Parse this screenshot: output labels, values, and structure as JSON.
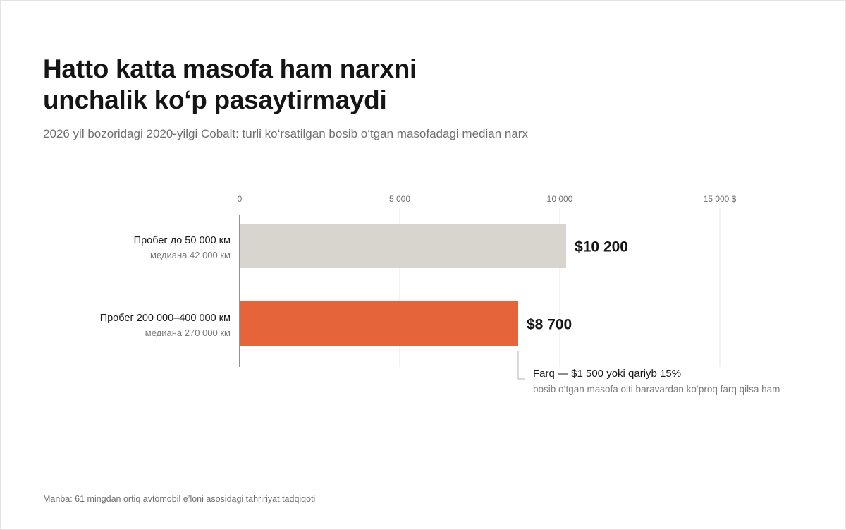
{
  "title": {
    "line1": "Hatto katta masofa ham narxni",
    "line2": "unchalik ko‘p pasaytirmaydi"
  },
  "subtitle": "2026 yil bozoridagi 2020-yilgi Cobalt: turli ko‘rsatilgan bosib o‘tgan masofadagi median narx",
  "source": "Manba: 61 mingdan ortiq avtomobil e’loni asosidagi tahririyat tadqiqoti",
  "chart_data": {
    "type": "bar",
    "orientation": "horizontal",
    "xlim": [
      0,
      15000
    ],
    "grid": true,
    "ticks": [
      {
        "value": 0,
        "label": "0"
      },
      {
        "value": 5000,
        "label": "5 000"
      },
      {
        "value": 10000,
        "label": "10 000"
      },
      {
        "value": 15000,
        "label": "15 000 $"
      }
    ],
    "categories": [
      {
        "label": "Пробег до 50 000 км",
        "sublabel": "медиана 42 000 км"
      },
      {
        "label": "Пробег 200 000–400 000 км",
        "sublabel": "медиана 270 000 км"
      }
    ],
    "values": [
      10200,
      8700
    ],
    "value_labels": [
      "$10 200",
      "$8 700"
    ],
    "colors": [
      "#d8d5ce",
      "#e5643a"
    ],
    "annotation": {
      "title": "Farq — $1 500 yoki qariyb 15%",
      "text": "bosib o‘tgan masofa olti baravardan ko‘proq farq qilsa ham"
    }
  }
}
